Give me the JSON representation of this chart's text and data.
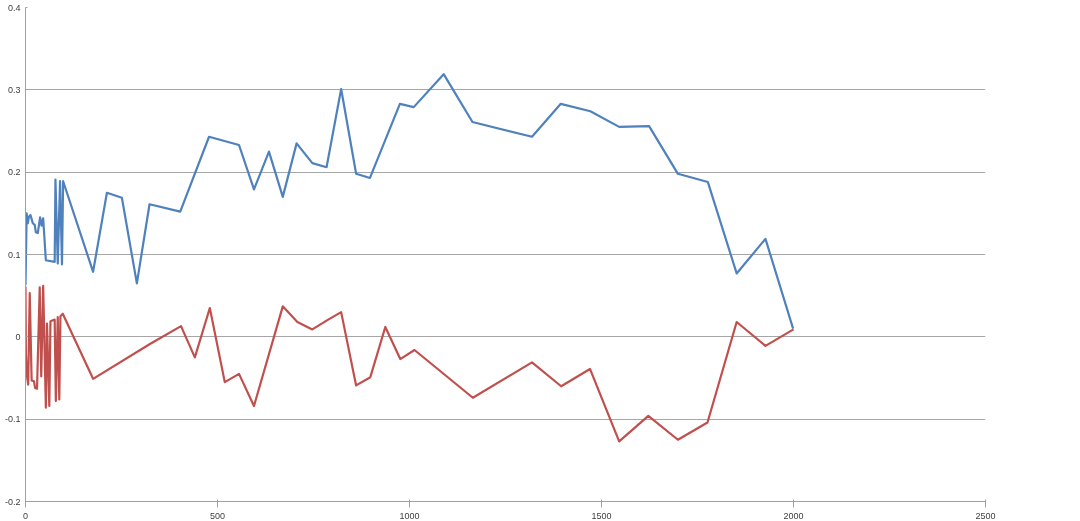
{
  "chart_data": {
    "type": "line",
    "xlim": [
      0,
      2500
    ],
    "ylim": [
      -0.2,
      0.4
    ],
    "xticks": [
      0,
      500,
      1000,
      1500,
      2000,
      2500
    ],
    "yticks": [
      -0.2,
      -0.1,
      0,
      0.1,
      0.2,
      0.3,
      0.4
    ],
    "grid": "y",
    "marker": "none",
    "line_style": "solid",
    "series": [
      {
        "color": "#4f81bd",
        "x": [
          0,
          3,
          6,
          9,
          13,
          19,
          24,
          27,
          32,
          38,
          42,
          46,
          53,
          76,
          78,
          84,
          90,
          95,
          98,
          176,
          212,
          251,
          290,
          323,
          403,
          478,
          556,
          595,
          634,
          670,
          706,
          747,
          784,
          822,
          861,
          897,
          975,
          1011,
          1089,
          1164,
          1319,
          1394,
          1471,
          1546,
          1624,
          1699,
          1777,
          1852,
          1927,
          1999
        ],
        "values": [
          0.063,
          0.15,
          0.138,
          0.146,
          0.148,
          0.138,
          0.136,
          0.127,
          0.126,
          0.145,
          0.135,
          0.144,
          0.093,
          0.091,
          0.191,
          0.089,
          0.189,
          0.088,
          0.189,
          0.079,
          0.175,
          0.169,
          0.065,
          0.161,
          0.152,
          0.243,
          0.233,
          0.179,
          0.225,
          0.17,
          0.235,
          0.211,
          0.206,
          0.301,
          0.198,
          0.193,
          0.283,
          0.279,
          0.319,
          0.261,
          0.243,
          0.283,
          0.274,
          0.255,
          0.256,
          0.198,
          0.188,
          0.077,
          0.119,
          0.01
        ]
      },
      {
        "color": "#c0504d",
        "x": [
          0,
          1,
          4,
          7,
          11,
          16,
          22,
          25,
          30,
          37,
          41,
          46,
          53,
          56,
          62,
          65,
          76,
          79,
          84,
          88,
          91,
          97,
          176,
          323,
          405,
          441,
          480,
          519,
          556,
          595,
          670,
          708,
          747,
          785,
          822,
          861,
          898,
          937,
          976,
          1013,
          1165,
          1319,
          1395,
          1470,
          1546,
          1622,
          1699,
          1776,
          1852,
          1927,
          2000
        ],
        "values": [
          0.061,
          -0.02,
          -0.048,
          -0.058,
          0.053,
          -0.053,
          -0.054,
          -0.062,
          -0.063,
          0.06,
          -0.048,
          0.062,
          -0.086,
          0.016,
          -0.084,
          0.019,
          0.021,
          -0.078,
          0.024,
          -0.076,
          0.025,
          0.028,
          -0.051,
          -0.009,
          0.013,
          -0.025,
          0.035,
          -0.055,
          -0.045,
          -0.084,
          0.037,
          0.018,
          0.009,
          0.02,
          0.03,
          -0.059,
          -0.049,
          0.012,
          -0.027,
          -0.016,
          -0.074,
          -0.031,
          -0.06,
          -0.039,
          -0.127,
          -0.096,
          -0.125,
          -0.104,
          0.018,
          -0.011,
          0.009
        ]
      }
    ]
  }
}
